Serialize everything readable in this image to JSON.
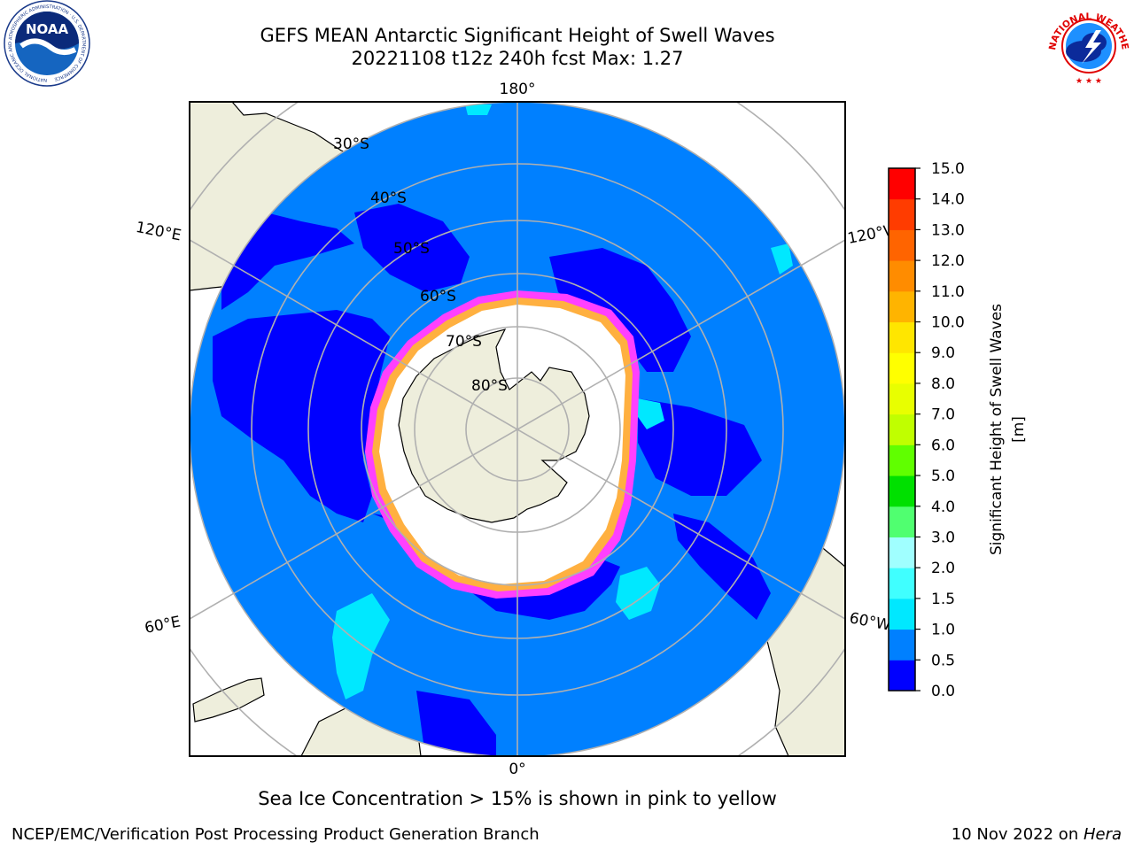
{
  "header": {
    "title_line1": "GEFS MEAN Antarctic Significant Height of Swell Waves",
    "title_line2": "20221108 t12z 240h fcst   Max: 1.27"
  },
  "logos": {
    "left": "NOAA",
    "left_ring_text": "NATIONAL OCEANIC AND ATMOSPHERIC ADMINISTRATION · U.S. DEPARTMENT OF COMMERCE",
    "right_ring_text": "NATIONAL WEATHER SERVICE"
  },
  "map": {
    "projection": "south-polar-stereographic",
    "longitude_labels": {
      "top": "180°",
      "bottom": "0°",
      "upper_left": "120°E",
      "upper_right": "120°W",
      "lower_left": "60°E",
      "lower_right": "60°W"
    },
    "latitude_labels": [
      "30°S",
      "40°S",
      "50°S",
      "60°S",
      "70°S",
      "80°S"
    ],
    "colors": {
      "land": "#eeeedc",
      "ocean_default": "#0080ff",
      "ocean_low": "#0000ff",
      "ice_interior": "#ffffff",
      "ice_edge_pink": "#ff40ff",
      "ice_edge_yellow": "#ffb040",
      "grid": "#b0b0b0"
    }
  },
  "colorbar": {
    "label": "Significant Height of Swell Waves [m]",
    "ticks": [
      "0.0",
      "0.5",
      "1.0",
      "1.5",
      "2.0",
      "3.0",
      "4.0",
      "5.0",
      "6.0",
      "7.0",
      "8.0",
      "9.0",
      "10.0",
      "11.0",
      "12.0",
      "13.0",
      "14.0",
      "15.0"
    ],
    "colors": [
      "#0000ff",
      "#0080ff",
      "#00e8ff",
      "#40ffff",
      "#a0ffff",
      "#50ff70",
      "#00e000",
      "#60ff00",
      "#c0ff00",
      "#e8ff00",
      "#ffff00",
      "#ffe600",
      "#ffb400",
      "#ff8c00",
      "#ff6400",
      "#ff3c00",
      "#ff0000"
    ]
  },
  "note": "Sea Ice Concentration > 15% is shown in pink to yellow",
  "footer": {
    "left": "NCEP/EMC/Verification Post Processing Product Generation Branch",
    "right_prefix": "10 Nov 2022 on ",
    "right_host": "Hera"
  }
}
